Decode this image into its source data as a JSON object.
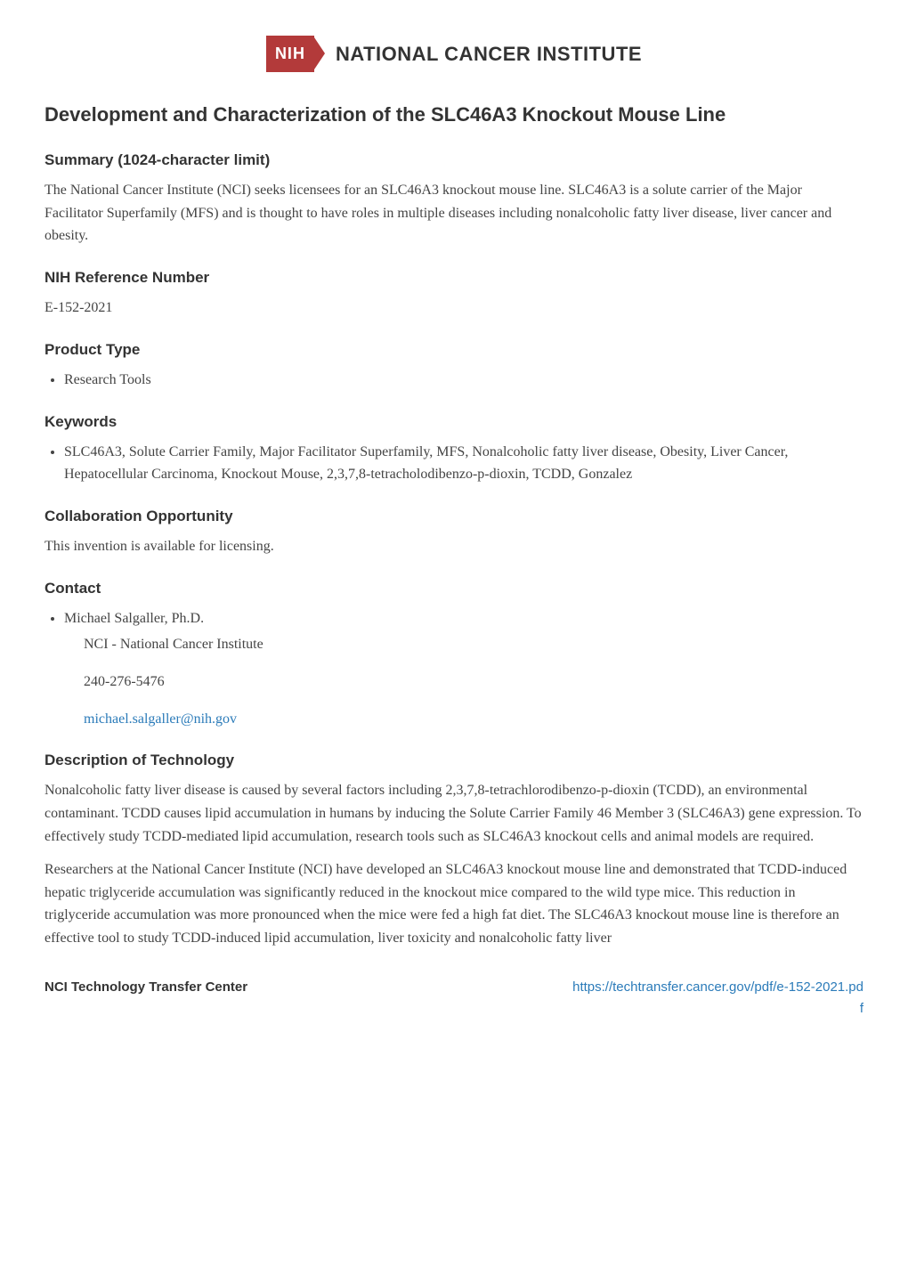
{
  "logo": {
    "badge": "NIH",
    "text": "NATIONAL CANCER INSTITUTE"
  },
  "title": "Development and Characterization of the SLC46A3 Knockout Mouse Line",
  "sections": {
    "summary": {
      "heading": "Summary (1024-character limit)",
      "body": "The National Cancer Institute (NCI) seeks licensees for an SLC46A3 knockout mouse line. SLC46A3 is a solute carrier of the Major Facilitator Superfamily (MFS) and is thought to have roles in multiple diseases including nonalcoholic fatty liver disease, liver cancer and obesity."
    },
    "reference": {
      "heading": "NIH Reference Number",
      "body": "E-152-2021"
    },
    "product_type": {
      "heading": "Product Type",
      "items": [
        "Research Tools"
      ]
    },
    "keywords": {
      "heading": "Keywords",
      "items": [
        "SLC46A3, Solute Carrier Family, Major Facilitator Superfamily, MFS, Nonalcoholic fatty liver disease, Obesity, Liver Cancer, Hepatocellular Carcinoma, Knockout Mouse, 2,3,7,8-tetracholodibenzo-p-dioxin, TCDD, Gonzalez"
      ]
    },
    "collaboration": {
      "heading": "Collaboration Opportunity",
      "body": "This invention is available for licensing."
    },
    "contact": {
      "heading": "Contact",
      "name": "Michael Salgaller, Ph.D.",
      "org": "NCI - National Cancer Institute",
      "phone": "240-276-5476",
      "email": "michael.salgaller@nih.gov"
    },
    "description": {
      "heading": "Description of Technology",
      "p1": "Nonalcoholic fatty liver disease is caused by several factors including 2,3,7,8-tetrachlorodibenzo-p-dioxin (TCDD), an environmental contaminant. TCDD causes lipid accumulation in humans by inducing the Solute Carrier Family 46 Member 3 (SLC46A3) gene expression. To effectively study TCDD-mediated lipid accumulation, research tools such as SLC46A3 knockout cells and animal models are required.",
      "p2": "Researchers at the National Cancer Institute (NCI) have developed an SLC46A3 knockout mouse line and demonstrated that TCDD-induced hepatic triglyceride accumulation was significantly reduced in the knockout mice compared to the wild type mice. This reduction in triglyceride accumulation was more pronounced when the mice were fed a high fat diet. The SLC46A3 knockout mouse line is therefore an effective tool to study TCDD-induced lipid accumulation, liver toxicity and nonalcoholic fatty liver"
    }
  },
  "footer": {
    "left": "NCI Technology Transfer Center",
    "url_line1": "https://techtransfer.cancer.gov/pdf/e-152-2021.pd",
    "url_line2": "f"
  },
  "colors": {
    "logo_badge_bg": "#b33a3a",
    "link": "#2b7bb9",
    "text": "#333333",
    "body_text": "#444444"
  }
}
